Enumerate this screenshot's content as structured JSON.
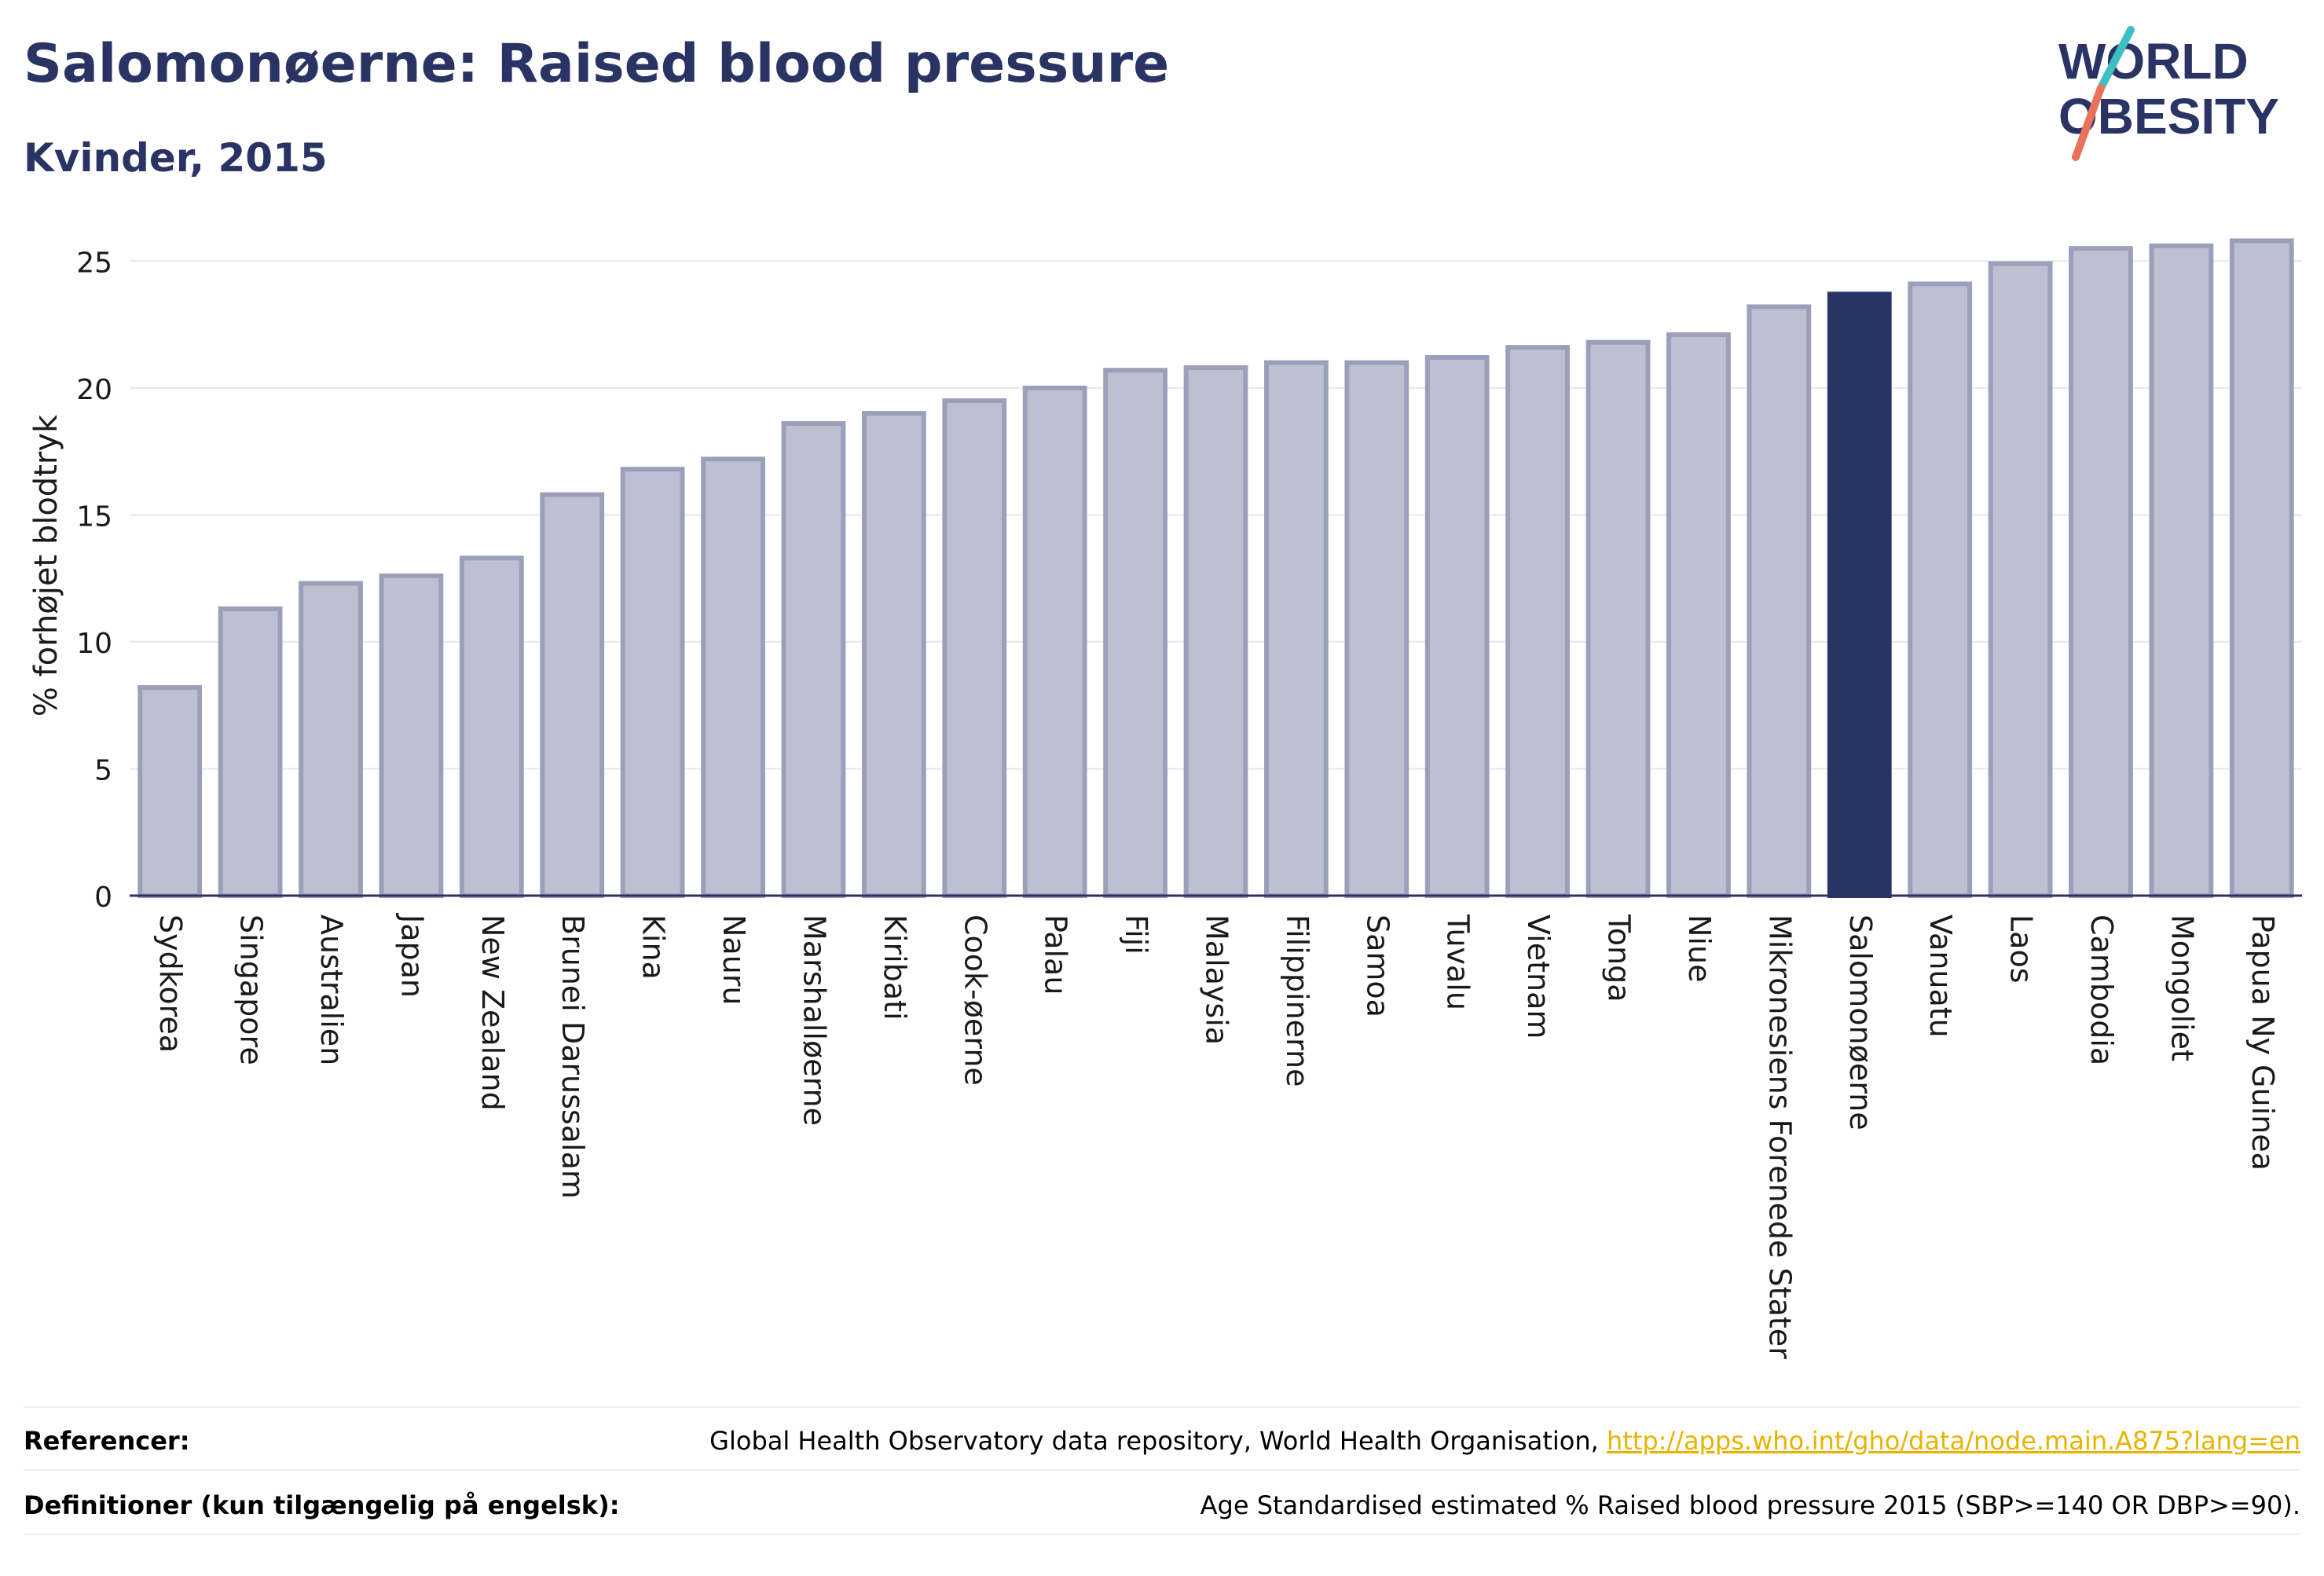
{
  "header": {
    "title": "Salomonøerne: Raised blood pressure",
    "subtitle": "Kvinder, 2015"
  },
  "logo": {
    "line1": "WORLD",
    "line2": "OBESITY",
    "accent_colors": [
      "#3dbfc1",
      "#e8735a"
    ]
  },
  "colors": {
    "bar_default": "#bcc0d0",
    "bar_default_stroke": "#9aa0bb",
    "bar_highlight": "#2a3464",
    "text_dark": "#2a3464",
    "link": "#e8b300"
  },
  "chart_data": {
    "type": "bar",
    "title": "Salomonøerne: Raised blood pressure",
    "subtitle": "Kvinder, 2015",
    "ylabel": "% forhøjet blodtryk",
    "xlabel": "",
    "ylim": [
      0,
      26
    ],
    "yticks": [
      0,
      5,
      10,
      15,
      20,
      25
    ],
    "grid": true,
    "highlight": "Salomonøerne",
    "categories": [
      "Sydkorea",
      "Singapore",
      "Australien",
      "Japan",
      "New Zealand",
      "Brunei Darussalam",
      "Kina",
      "Nauru",
      "Marshalløerne",
      "Kiribati",
      "Cook-øerne",
      "Palau",
      "Fiji",
      "Malaysia",
      "Filippinerne",
      "Samoa",
      "Tuvalu",
      "Vietnam",
      "Tonga",
      "Niue",
      "Mikronesiens Forenede Stater",
      "Salomonøerne",
      "Vanuatu",
      "Laos",
      "Cambodia",
      "Mongoliet",
      "Papua Ny Guinea"
    ],
    "values": [
      8.2,
      11.3,
      12.3,
      12.6,
      13.3,
      15.8,
      16.8,
      17.2,
      18.6,
      19.0,
      19.5,
      20.0,
      20.7,
      20.8,
      21.0,
      21.0,
      21.2,
      21.6,
      21.8,
      22.1,
      23.2,
      23.7,
      24.1,
      24.9,
      25.5,
      25.6,
      25.8
    ]
  },
  "footer": {
    "references_label": "Referencer:",
    "references_text": "Global Health Observatory data repository, World Health Organisation, ",
    "references_link": "http://apps.who.int/gho/data/node.main.A875?lang=en",
    "definitions_label": "Definitioner (kun tilgængelig på engelsk):",
    "definitions_text": "Age Standardised estimated % Raised blood pressure 2015 (SBP>=140 OR DBP>=90)."
  }
}
